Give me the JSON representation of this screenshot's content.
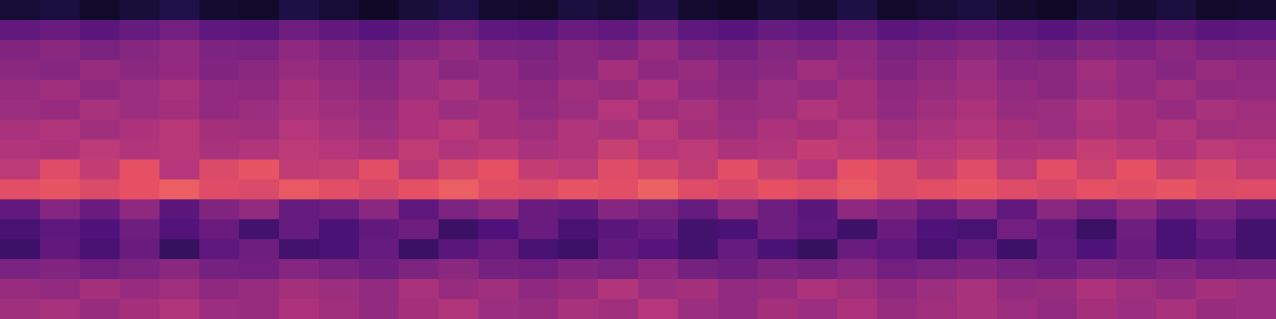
{
  "chart_data": {
    "type": "heatmap",
    "xlim": [
      0,
      32
    ],
    "ylim": [
      0,
      16
    ],
    "tick_labels": false,
    "cells": [
      [
        0.1,
        0.12,
        0.08,
        0.11,
        0.14,
        0.09,
        0.08,
        0.13,
        0.1,
        0.07,
        0.11,
        0.14,
        0.09,
        0.08,
        0.12,
        0.1,
        0.15,
        0.09,
        0.07,
        0.11,
        0.09,
        0.13,
        0.08,
        0.1,
        0.12,
        0.09,
        0.07,
        0.11,
        0.09,
        0.12,
        0.08,
        0.09
      ],
      [
        0.3,
        0.32,
        0.28,
        0.31,
        0.34,
        0.29,
        0.28,
        0.33,
        0.3,
        0.27,
        0.31,
        0.34,
        0.29,
        0.28,
        0.32,
        0.3,
        0.35,
        0.29,
        0.27,
        0.31,
        0.29,
        0.33,
        0.28,
        0.3,
        0.32,
        0.29,
        0.27,
        0.31,
        0.29,
        0.32,
        0.28,
        0.29
      ],
      [
        0.38,
        0.4,
        0.36,
        0.39,
        0.42,
        0.37,
        0.36,
        0.41,
        0.38,
        0.35,
        0.39,
        0.42,
        0.37,
        0.36,
        0.4,
        0.38,
        0.43,
        0.37,
        0.35,
        0.39,
        0.37,
        0.41,
        0.36,
        0.38,
        0.4,
        0.37,
        0.35,
        0.39,
        0.37,
        0.4,
        0.36,
        0.37
      ],
      [
        0.4,
        0.39,
        0.43,
        0.4,
        0.42,
        0.38,
        0.4,
        0.43,
        0.41,
        0.39,
        0.44,
        0.4,
        0.42,
        0.38,
        0.4,
        0.46,
        0.41,
        0.43,
        0.39,
        0.4,
        0.45,
        0.42,
        0.38,
        0.41,
        0.44,
        0.39,
        0.4,
        0.45,
        0.42,
        0.39,
        0.43,
        0.41
      ],
      [
        0.43,
        0.45,
        0.41,
        0.44,
        0.47,
        0.42,
        0.41,
        0.46,
        0.43,
        0.4,
        0.44,
        0.47,
        0.42,
        0.41,
        0.45,
        0.43,
        0.48,
        0.42,
        0.4,
        0.44,
        0.42,
        0.46,
        0.41,
        0.43,
        0.45,
        0.42,
        0.4,
        0.44,
        0.42,
        0.45,
        0.41,
        0.42
      ],
      [
        0.44,
        0.43,
        0.47,
        0.44,
        0.46,
        0.42,
        0.44,
        0.47,
        0.45,
        0.43,
        0.48,
        0.44,
        0.46,
        0.42,
        0.44,
        0.5,
        0.45,
        0.47,
        0.43,
        0.44,
        0.49,
        0.46,
        0.42,
        0.45,
        0.48,
        0.43,
        0.44,
        0.49,
        0.46,
        0.43,
        0.47,
        0.45
      ],
      [
        0.47,
        0.49,
        0.45,
        0.48,
        0.51,
        0.46,
        0.45,
        0.5,
        0.47,
        0.44,
        0.48,
        0.51,
        0.46,
        0.45,
        0.49,
        0.47,
        0.52,
        0.46,
        0.44,
        0.48,
        0.46,
        0.5,
        0.45,
        0.47,
        0.49,
        0.46,
        0.44,
        0.48,
        0.46,
        0.49,
        0.45,
        0.46
      ],
      [
        0.49,
        0.48,
        0.52,
        0.49,
        0.51,
        0.47,
        0.49,
        0.52,
        0.5,
        0.48,
        0.53,
        0.49,
        0.51,
        0.47,
        0.49,
        0.55,
        0.5,
        0.52,
        0.48,
        0.49,
        0.54,
        0.51,
        0.47,
        0.5,
        0.53,
        0.48,
        0.49,
        0.54,
        0.51,
        0.48,
        0.52,
        0.5
      ],
      [
        0.52,
        0.61,
        0.54,
        0.63,
        0.5,
        0.6,
        0.64,
        0.53,
        0.55,
        0.62,
        0.51,
        0.59,
        0.63,
        0.54,
        0.52,
        0.61,
        0.58,
        0.53,
        0.62,
        0.55,
        0.5,
        0.63,
        0.6,
        0.54,
        0.61,
        0.52,
        0.62,
        0.56,
        0.63,
        0.55,
        0.59,
        0.53
      ],
      [
        0.62,
        0.64,
        0.6,
        0.63,
        0.66,
        0.61,
        0.6,
        0.65,
        0.62,
        0.59,
        0.63,
        0.66,
        0.61,
        0.6,
        0.64,
        0.62,
        0.67,
        0.61,
        0.59,
        0.63,
        0.61,
        0.65,
        0.6,
        0.62,
        0.64,
        0.61,
        0.59,
        0.63,
        0.61,
        0.64,
        0.6,
        0.61
      ],
      [
        0.3,
        0.39,
        0.32,
        0.41,
        0.28,
        0.38,
        0.42,
        0.31,
        0.33,
        0.4,
        0.29,
        0.37,
        0.41,
        0.32,
        0.3,
        0.39,
        0.36,
        0.31,
        0.4,
        0.33,
        0.28,
        0.41,
        0.38,
        0.32,
        0.39,
        0.3,
        0.4,
        0.34,
        0.41,
        0.33,
        0.37,
        0.31
      ],
      [
        0.23,
        0.29,
        0.25,
        0.33,
        0.26,
        0.32,
        0.22,
        0.31,
        0.24,
        0.3,
        0.33,
        0.2,
        0.25,
        0.32,
        0.23,
        0.28,
        0.31,
        0.22,
        0.24,
        0.33,
        0.29,
        0.21,
        0.32,
        0.25,
        0.23,
        0.34,
        0.3,
        0.2,
        0.33,
        0.24,
        0.31,
        0.22
      ],
      [
        0.21,
        0.3,
        0.23,
        0.32,
        0.19,
        0.29,
        0.33,
        0.22,
        0.24,
        0.31,
        0.2,
        0.28,
        0.32,
        0.23,
        0.21,
        0.3,
        0.27,
        0.22,
        0.31,
        0.24,
        0.19,
        0.32,
        0.29,
        0.23,
        0.3,
        0.21,
        0.31,
        0.25,
        0.32,
        0.24,
        0.28,
        0.22
      ],
      [
        0.36,
        0.38,
        0.34,
        0.37,
        0.4,
        0.35,
        0.34,
        0.39,
        0.36,
        0.33,
        0.37,
        0.4,
        0.35,
        0.34,
        0.38,
        0.36,
        0.41,
        0.35,
        0.33,
        0.37,
        0.35,
        0.39,
        0.34,
        0.36,
        0.38,
        0.35,
        0.33,
        0.37,
        0.35,
        0.38,
        0.34,
        0.35
      ],
      [
        0.43,
        0.42,
        0.46,
        0.43,
        0.45,
        0.41,
        0.43,
        0.46,
        0.44,
        0.42,
        0.47,
        0.43,
        0.45,
        0.41,
        0.43,
        0.49,
        0.44,
        0.46,
        0.42,
        0.43,
        0.48,
        0.45,
        0.41,
        0.44,
        0.47,
        0.42,
        0.43,
        0.48,
        0.45,
        0.42,
        0.46,
        0.44
      ],
      [
        0.45,
        0.47,
        0.43,
        0.46,
        0.49,
        0.44,
        0.43,
        0.48,
        0.45,
        0.42,
        0.46,
        0.49,
        0.44,
        0.43,
        0.47,
        0.45,
        0.5,
        0.44,
        0.42,
        0.46,
        0.44,
        0.48,
        0.43,
        0.45,
        0.47,
        0.44,
        0.42,
        0.46,
        0.44,
        0.47,
        0.43,
        0.44
      ]
    ]
  }
}
